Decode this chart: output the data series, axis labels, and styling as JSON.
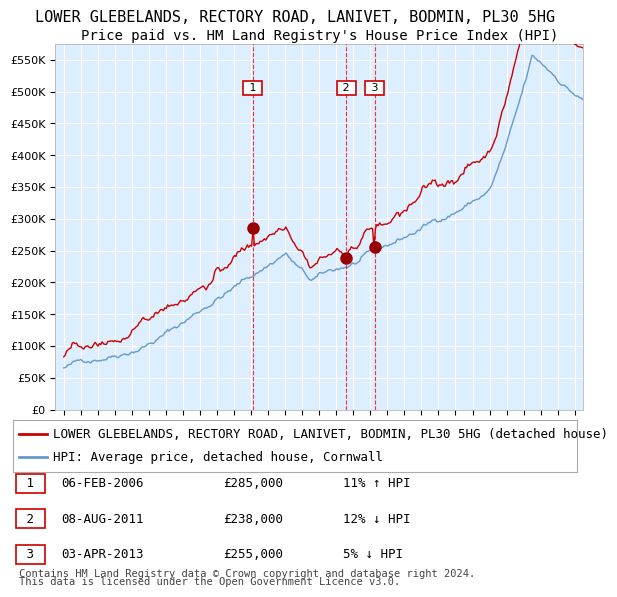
{
  "title": "LOWER GLEBELANDS, RECTORY ROAD, LANIVET, BODMIN, PL30 5HG",
  "subtitle": "Price paid vs. HM Land Registry's House Price Index (HPI)",
  "legend_line1": "LOWER GLEBELANDS, RECTORY ROAD, LANIVET, BODMIN, PL30 5HG (detached house)",
  "legend_line2": "HPI: Average price, detached house, Cornwall",
  "transactions": [
    {
      "num": 1,
      "date": "06-FEB-2006",
      "price": 285000,
      "relation": "11% ↑ HPI"
    },
    {
      "num": 2,
      "date": "08-AUG-2011",
      "price": 238000,
      "relation": "12% ↓ HPI"
    },
    {
      "num": 3,
      "date": "03-APR-2013",
      "price": 255000,
      "relation": "5% ↓ HPI"
    }
  ],
  "transaction_dates_decimal": [
    2006.093,
    2011.597,
    2013.253
  ],
  "transaction_prices": [
    285000,
    238000,
    255000
  ],
  "footnote1": "Contains HM Land Registry data © Crown copyright and database right 2024.",
  "footnote2": "This data is licensed under the Open Government Licence v3.0.",
  "ylim": [
    0,
    575000
  ],
  "yticks": [
    0,
    50000,
    100000,
    150000,
    200000,
    250000,
    300000,
    350000,
    400000,
    450000,
    500000,
    550000
  ],
  "ytick_labels": [
    "£0",
    "£50K",
    "£100K",
    "£150K",
    "£200K",
    "£250K",
    "£300K",
    "£350K",
    "£400K",
    "£450K",
    "£500K",
    "£550K"
  ],
  "xlim_start": 1994.5,
  "xlim_end": 2025.5,
  "red_line_color": "#cc0000",
  "blue_line_color": "#6699cc",
  "plot_bg_color": "#ddeeff",
  "grid_color": "#ffffff",
  "dashed_line_color": "#ff0000",
  "marker_color": "#990000",
  "box_edge_color": "#cc0000",
  "title_fontsize": 11,
  "subtitle_fontsize": 10,
  "legend_fontsize": 9,
  "table_fontsize": 9,
  "footnote_fontsize": 7.5
}
